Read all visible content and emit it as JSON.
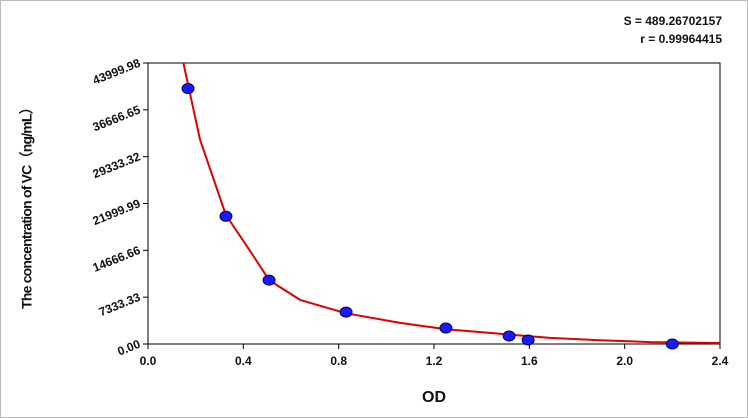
{
  "chart_data": {
    "type": "scatter",
    "annotations": [
      "S = 489.26702157",
      "r = 0.99964415"
    ],
    "x_label": "OD",
    "y_label": "The concentration of VC（ng/mL）",
    "xlim": [
      0,
      2.4
    ],
    "ylim": [
      0,
      43999.98
    ],
    "xticks": [
      {
        "value": 0,
        "label": "0.0"
      },
      0.4,
      0.8,
      1.2,
      1.6,
      {
        "value": 2,
        "label": "2.0"
      },
      2.4
    ],
    "yticks": [
      {
        "value": 0,
        "label": "0.00"
      },
      7333.33,
      14666.66,
      21999.99,
      29333.32,
      36666.65,
      43999.98
    ],
    "points": {
      "color": "#1a1aff",
      "x": [
        0.168,
        0.327,
        0.508,
        0.831,
        1.25,
        1.515,
        1.595,
        2.2
      ],
      "values": [
        40000,
        20000,
        10000,
        5000,
        2500,
        1250,
        625,
        0
      ]
    },
    "fit_curve": {
      "color": "#e00000",
      "x": [
        0.143,
        0.218,
        0.327,
        0.428,
        0.508,
        0.638,
        0.831,
        1.058,
        1.251,
        1.477,
        1.687,
        1.897,
        2.107,
        2.4
      ],
      "values": [
        44940,
        32000,
        20200,
        14600,
        10000,
        6900,
        4800,
        3300,
        2300,
        1600,
        950,
        600,
        300,
        150
      ]
    }
  }
}
